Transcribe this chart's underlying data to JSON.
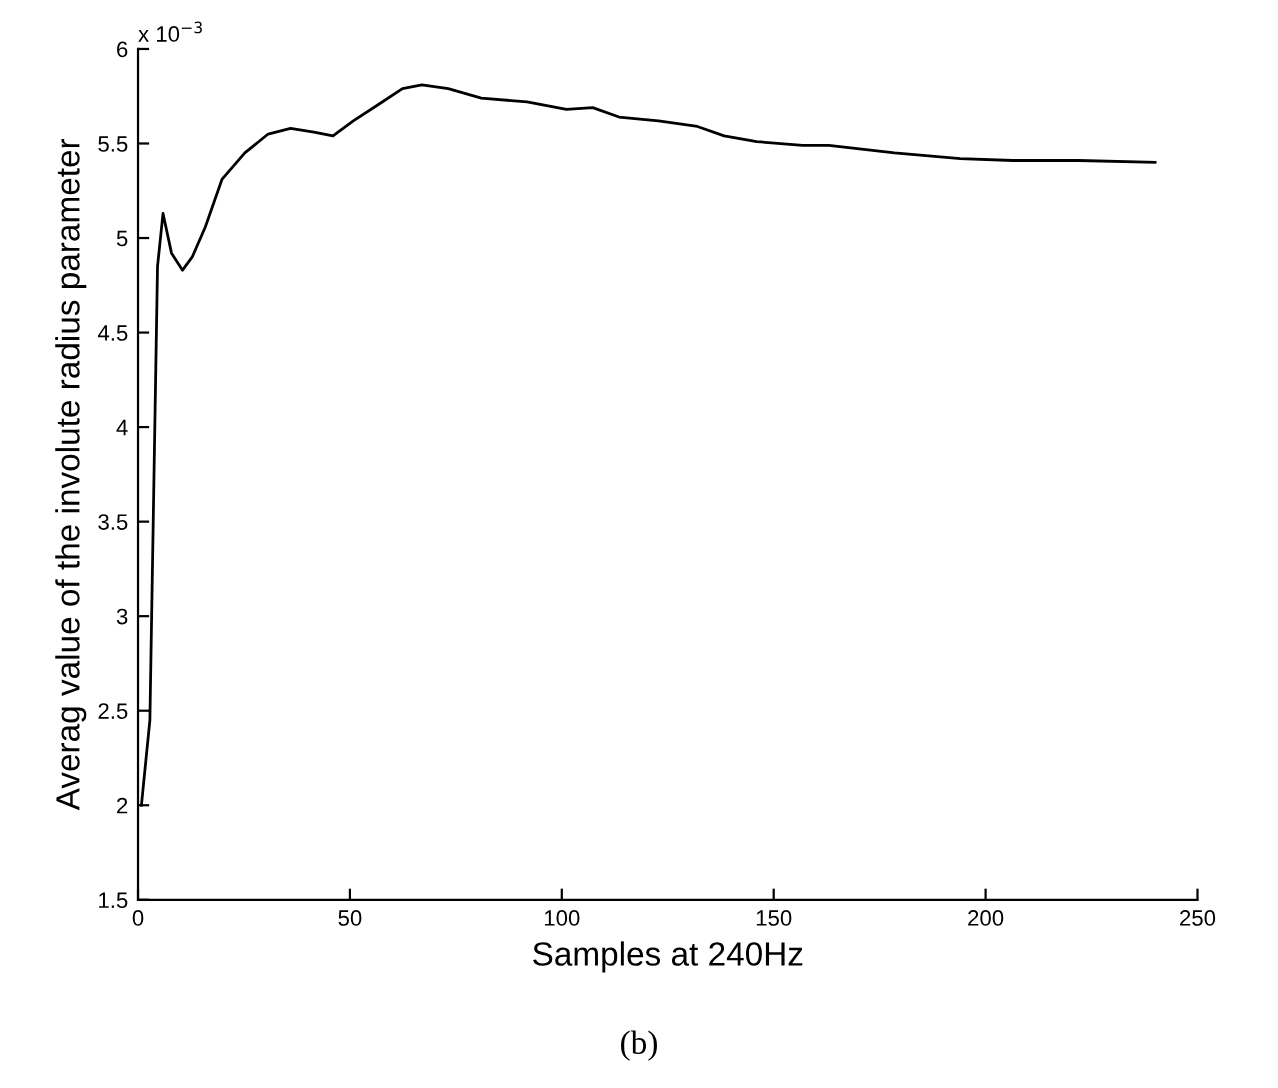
{
  "chart_data": {
    "type": "line",
    "xlabel": "Samples at 240Hz",
    "ylabel": "Averag value of the involute radius parameter",
    "annotations": [
      "x 10$^{−3}$",
      "(b)"
    ],
    "xlim": [
      0,
      250
    ],
    "xticks": [
      0,
      50,
      100,
      150,
      200,
      250
    ],
    "ylim": [
      1.5,
      6
    ],
    "yticks": [
      1.5,
      2,
      2.5,
      3,
      3.5,
      4,
      4.5,
      5,
      5.5,
      6
    ],
    "grid": false,
    "legend": false,
    "marker": "none",
    "line_style": "solid",
    "series": [
      {
        "color": "#000000",
        "x": [
          0.8,
          2.8,
          4.6,
          5.9,
          7.9,
          10.5,
          12.8,
          15.9,
          19.8,
          25.2,
          30.7,
          36,
          41.5,
          46,
          50.8,
          57,
          62.4,
          67,
          73.2,
          81,
          91.8,
          101.1,
          107.3,
          113.5,
          122.8,
          132,
          138.3,
          146,
          156.8,
          163,
          178.5,
          194,
          206.4,
          221.9,
          240
        ],
        "values": [
          2.0,
          2.45,
          4.85,
          5.13,
          4.92,
          4.83,
          4.9,
          5.06,
          5.31,
          5.45,
          5.55,
          5.58,
          5.56,
          5.54,
          5.62,
          5.71,
          5.79,
          5.81,
          5.79,
          5.74,
          5.72,
          5.68,
          5.69,
          5.64,
          5.62,
          5.59,
          5.54,
          5.51,
          5.49,
          5.49,
          5.45,
          5.42,
          5.41,
          5.41,
          5.4
        ]
      }
    ]
  }
}
